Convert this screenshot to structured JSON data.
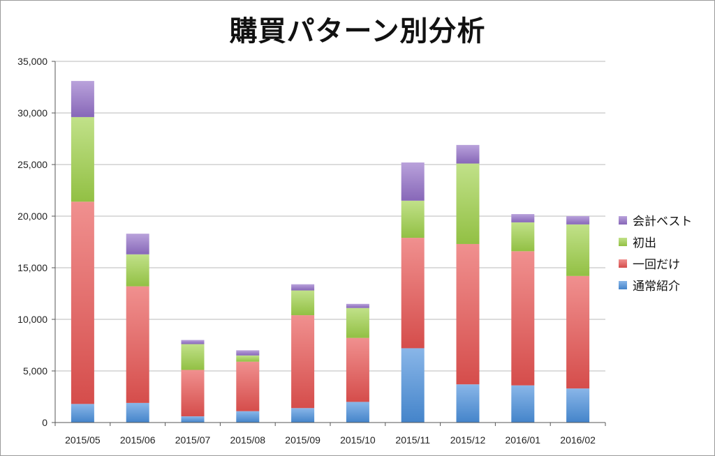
{
  "chart_data": {
    "type": "bar",
    "stacked": true,
    "title": "購買パターン別分析",
    "xlabel": "",
    "ylabel": "",
    "ylim": [
      0,
      35000
    ],
    "yticks": [
      0,
      5000,
      10000,
      15000,
      20000,
      25000,
      30000,
      35000
    ],
    "ytick_labels": [
      "0",
      "5,000",
      "10,000",
      "15,000",
      "20,000",
      "25,000",
      "30,000",
      "35,000"
    ],
    "grid": true,
    "legend_position": "right",
    "categories": [
      "2015/05",
      "2015/06",
      "2015/07",
      "2015/08",
      "2015/09",
      "2015/10",
      "2015/11",
      "2015/12",
      "2016/01",
      "2016/02"
    ],
    "series": [
      {
        "name": "通常紹介",
        "color": "#4a8fdc",
        "values": [
          1800,
          1900,
          600,
          1100,
          1400,
          2000,
          7200,
          3700,
          3600,
          3300
        ]
      },
      {
        "name": "一回だけ",
        "color": "#e85452",
        "values": [
          19600,
          11300,
          4500,
          4800,
          9000,
          6200,
          10700,
          13600,
          13000,
          10900
        ]
      },
      {
        "name": "初出",
        "color": "#9fd14a",
        "values": [
          8200,
          3100,
          2500,
          600,
          2400,
          2900,
          3600,
          7800,
          2800,
          5000
        ]
      },
      {
        "name": "会計ベスト",
        "color": "#9370c8",
        "values": [
          3500,
          2000,
          400,
          500,
          600,
          400,
          3700,
          1800,
          800,
          800
        ]
      }
    ]
  }
}
